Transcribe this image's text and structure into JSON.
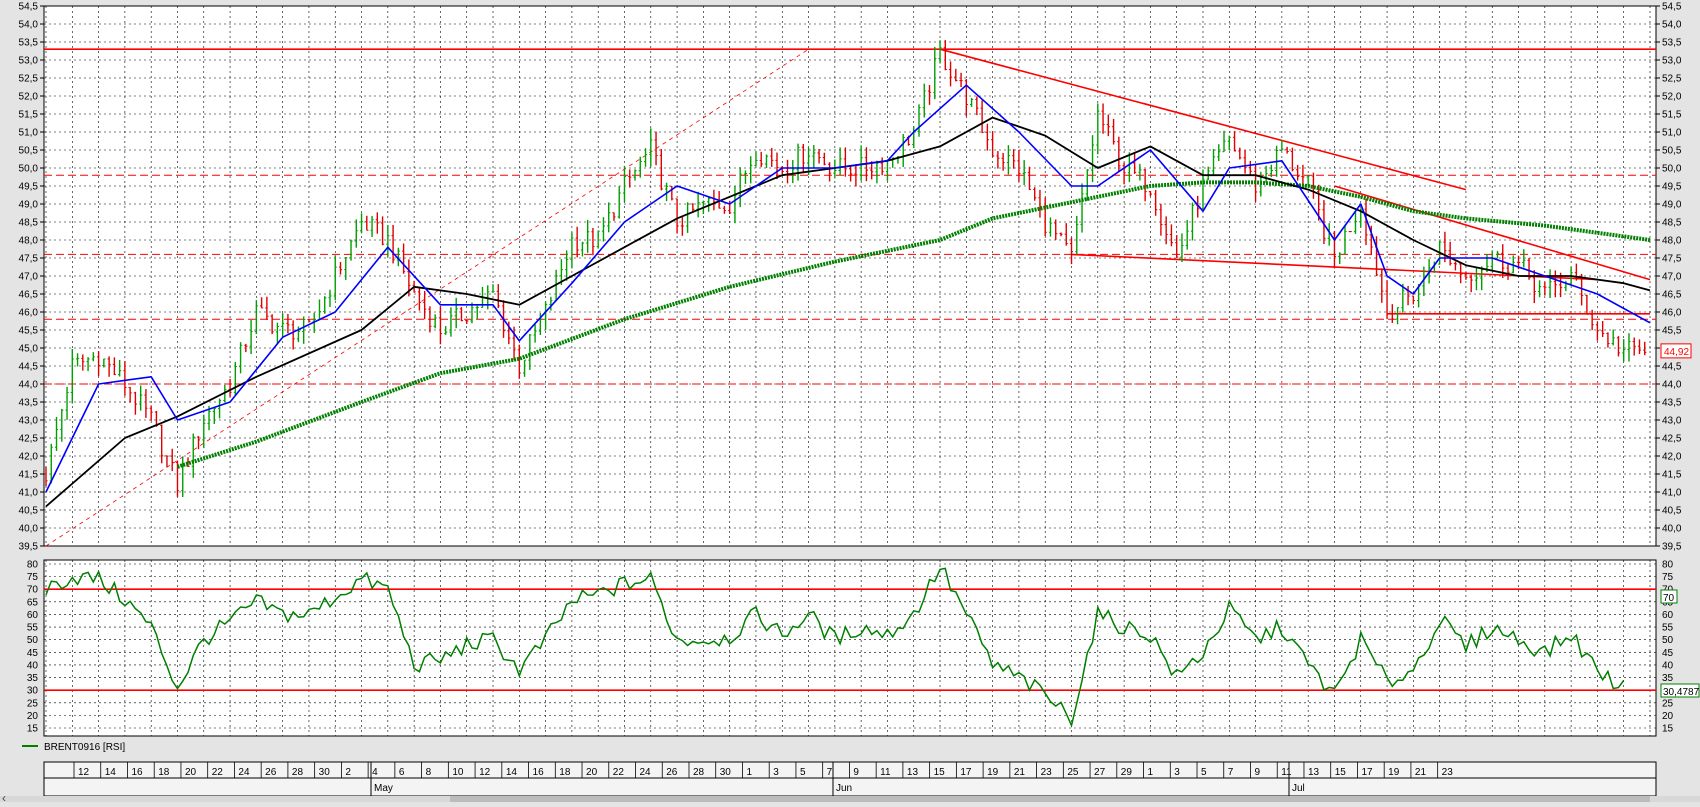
{
  "price_panel": {
    "ylim": [
      39.5,
      54.5
    ],
    "grid": true,
    "right_tick_labels": [
      "54,5",
      "54,0",
      "53,5",
      "53,0",
      "52,5",
      "52,0",
      "51,5",
      "51,0",
      "50,5",
      "50,0",
      "49,5",
      "49,0",
      "48,5",
      "48,0",
      "47,5",
      "47,0",
      "46,5",
      "46,0",
      "45,5",
      "45,0",
      "44,5",
      "44,0",
      "43,5",
      "43,0",
      "42,5",
      "42,0",
      "41,5",
      "41,0",
      "40,5",
      "40,0",
      "39,5"
    ],
    "left_tick_labels": [
      "54,5",
      "54,0",
      "53,5",
      "53,0",
      "52,5",
      "52,0",
      "51,5",
      "51,0",
      "50,5",
      "50,0",
      "49,5",
      "49,0",
      "48,5",
      "48,0",
      "47,5",
      "47,0",
      "46,5",
      "46,0",
      "45,5",
      "45,0",
      "44,5",
      "44,0",
      "43,5",
      "43,0",
      "42,5",
      "42,0",
      "41,5",
      "41,0",
      "40,5",
      "40,0",
      "39,5"
    ],
    "last_price_label": "44,92",
    "last_price": 44.92,
    "colors": {
      "up": "#00a000",
      "down": "#e00000",
      "ma_fast": "#0000ff",
      "ma_mid": "#000000",
      "ma_slow": "#008000",
      "levels": "#ff0000"
    }
  },
  "rsi_panel": {
    "ylim": [
      15,
      80
    ],
    "tick_labels": [
      "80",
      "75",
      "70",
      "65",
      "60",
      "55",
      "50",
      "45",
      "40",
      "35",
      "30",
      "25",
      "20",
      "15"
    ],
    "upper_label": "70",
    "last_value_label": "30,4787",
    "legend": "BRENT0916 [RSI]",
    "line_color": "#008000"
  },
  "date_axis": {
    "day_labels": [
      "12",
      "14",
      "16",
      "18",
      "20",
      "22",
      "24",
      "26",
      "28",
      "30",
      "2",
      "4",
      "6",
      "8",
      "10",
      "12",
      "14",
      "16",
      "18",
      "20",
      "22",
      "24",
      "26",
      "28",
      "30",
      "1",
      "3",
      "5",
      "7",
      "9",
      "11",
      "13",
      "15",
      "17",
      "19",
      "21",
      "23",
      "25",
      "27",
      "29",
      "1",
      "3",
      "5",
      "7",
      "9",
      "11",
      "13",
      "15",
      "17",
      "19",
      "21",
      "23"
    ],
    "month_labels": [
      "May",
      "Jun",
      "Jul"
    ]
  },
  "chart_data": {
    "type": "line",
    "instrument": "BRENT0916",
    "x_labels": [
      "12",
      "14",
      "16",
      "18",
      "20",
      "22",
      "24",
      "26",
      "28",
      "30",
      "2",
      "4",
      "6",
      "8",
      "10",
      "12",
      "14",
      "16",
      "18",
      "20",
      "22",
      "24",
      "26",
      "28",
      "30",
      "1",
      "3",
      "5",
      "7",
      "9",
      "11",
      "13",
      "15",
      "17",
      "19",
      "21",
      "23",
      "25",
      "27",
      "29",
      "1",
      "3",
      "5",
      "7",
      "9",
      "11",
      "13",
      "15",
      "17",
      "19",
      "21",
      "23"
    ],
    "price_key_points": [
      [
        0,
        41.5
      ],
      [
        1,
        44.5
      ],
      [
        2,
        44.8
      ],
      [
        3,
        44.0
      ],
      [
        4,
        43.0
      ],
      [
        5,
        41.2
      ],
      [
        6,
        43.0
      ],
      [
        7,
        44.0
      ],
      [
        8,
        46.0
      ],
      [
        9,
        45.5
      ],
      [
        10,
        45.5
      ],
      [
        11,
        47.0
      ],
      [
        12,
        48.5
      ],
      [
        13,
        48.0
      ],
      [
        14,
        46.5
      ],
      [
        15,
        45.5
      ],
      [
        16,
        46.0
      ],
      [
        17,
        46.5
      ],
      [
        18,
        44.5
      ],
      [
        19,
        46.0
      ],
      [
        20,
        48.0
      ],
      [
        21,
        48.0
      ],
      [
        22,
        49.5
      ],
      [
        23,
        50.5
      ],
      [
        24,
        48.5
      ],
      [
        25,
        49.0
      ],
      [
        26,
        49.0
      ],
      [
        27,
        50.5
      ],
      [
        28,
        50.0
      ],
      [
        29,
        50.5
      ],
      [
        30,
        50.0
      ],
      [
        31,
        50.0
      ],
      [
        32,
        50.2
      ],
      [
        33,
        51.0
      ],
      [
        34,
        53.2
      ],
      [
        35,
        52.0
      ],
      [
        36,
        50.5
      ],
      [
        37,
        50.0
      ],
      [
        38,
        48.5
      ],
      [
        39,
        47.5
      ],
      [
        40,
        51.5
      ],
      [
        41,
        50.0
      ],
      [
        42,
        49.5
      ],
      [
        43,
        47.5
      ],
      [
        44,
        49.5
      ],
      [
        45,
        50.8
      ],
      [
        46,
        49.5
      ],
      [
        47,
        50.5
      ],
      [
        48,
        49.5
      ],
      [
        49,
        47.5
      ],
      [
        50,
        49.0
      ],
      [
        51,
        46.0
      ],
      [
        52,
        46.5
      ],
      [
        53,
        47.8
      ],
      [
        54,
        47.0
      ],
      [
        55,
        47.5
      ],
      [
        56,
        47.3
      ],
      [
        57,
        46.5
      ],
      [
        58,
        47.0
      ],
      [
        59,
        45.5
      ],
      [
        60,
        44.92
      ]
    ],
    "ma_fast_key_points": [
      [
        0,
        41.0
      ],
      [
        2,
        44.0
      ],
      [
        4,
        44.2
      ],
      [
        5,
        43.0
      ],
      [
        7,
        43.5
      ],
      [
        9,
        45.3
      ],
      [
        11,
        46.0
      ],
      [
        13,
        47.8
      ],
      [
        15,
        46.2
      ],
      [
        17,
        46.2
      ],
      [
        18,
        45.2
      ],
      [
        20,
        46.8
      ],
      [
        22,
        48.5
      ],
      [
        24,
        49.5
      ],
      [
        26,
        49.0
      ],
      [
        28,
        50.0
      ],
      [
        30,
        50.0
      ],
      [
        32,
        50.2
      ],
      [
        33,
        51.0
      ],
      [
        35,
        52.3
      ],
      [
        37,
        51.0
      ],
      [
        39,
        49.5
      ],
      [
        40,
        49.5
      ],
      [
        42,
        50.5
      ],
      [
        44,
        48.8
      ],
      [
        45,
        50.0
      ],
      [
        47,
        50.2
      ],
      [
        49,
        48.0
      ],
      [
        50,
        49.0
      ],
      [
        51,
        47.0
      ],
      [
        52,
        46.5
      ],
      [
        53,
        47.5
      ],
      [
        55,
        47.5
      ],
      [
        57,
        47.0
      ],
      [
        59,
        46.5
      ],
      [
        61,
        45.7
      ]
    ],
    "ma_mid_key_points": [
      [
        0,
        40.6
      ],
      [
        3,
        42.5
      ],
      [
        5,
        43.1
      ],
      [
        8,
        44.2
      ],
      [
        12,
        45.5
      ],
      [
        14,
        46.7
      ],
      [
        16,
        46.5
      ],
      [
        18,
        46.2
      ],
      [
        20,
        47.0
      ],
      [
        22,
        47.8
      ],
      [
        24,
        48.6
      ],
      [
        26,
        49.2
      ],
      [
        28,
        49.8
      ],
      [
        30,
        50.0
      ],
      [
        32,
        50.2
      ],
      [
        34,
        50.6
      ],
      [
        36,
        51.4
      ],
      [
        38,
        50.9
      ],
      [
        40,
        50.0
      ],
      [
        42,
        50.6
      ],
      [
        44,
        49.8
      ],
      [
        46,
        49.8
      ],
      [
        48,
        49.4
      ],
      [
        50,
        48.8
      ],
      [
        52,
        48.0
      ],
      [
        54,
        47.3
      ],
      [
        56,
        47.0
      ],
      [
        58,
        47.0
      ],
      [
        60,
        46.8
      ],
      [
        61,
        46.6
      ]
    ],
    "ma_slow_key_points": [
      [
        5,
        41.7
      ],
      [
        8,
        42.4
      ],
      [
        12,
        43.5
      ],
      [
        15,
        44.3
      ],
      [
        18,
        44.7
      ],
      [
        22,
        45.8
      ],
      [
        26,
        46.7
      ],
      [
        30,
        47.4
      ],
      [
        34,
        48.0
      ],
      [
        36,
        48.6
      ],
      [
        38,
        48.9
      ],
      [
        40,
        49.2
      ],
      [
        42,
        49.5
      ],
      [
        44,
        49.6
      ],
      [
        46,
        49.6
      ],
      [
        48,
        49.5
      ],
      [
        50,
        49.2
      ],
      [
        52,
        48.8
      ],
      [
        54,
        48.6
      ],
      [
        57,
        48.4
      ],
      [
        59,
        48.2
      ],
      [
        61,
        48.0
      ]
    ],
    "horizontal_levels": [
      {
        "value": 53.3,
        "style": "solid"
      },
      {
        "value": 49.8,
        "style": "dashed"
      },
      {
        "value": 47.6,
        "style": "dashed"
      },
      {
        "value": 45.8,
        "style": "dashed"
      },
      {
        "value": 44.0,
        "style": "dashed"
      }
    ],
    "trendlines": [
      {
        "from": [
          0,
          39.5
        ],
        "to": [
          29,
          53.3
        ],
        "style": "dashed"
      },
      {
        "from": [
          34,
          53.3
        ],
        "to": [
          54,
          49.4
        ],
        "style": "solid"
      },
      {
        "from": [
          39,
          47.6
        ],
        "to": [
          59,
          46.9
        ],
        "style": "solid"
      },
      {
        "from": [
          49,
          49.5
        ],
        "to": [
          61,
          46.9
        ],
        "style": "solid"
      },
      {
        "from": [
          51,
          45.95
        ],
        "to": [
          61,
          45.95
        ],
        "style": "solid"
      }
    ],
    "rsi_key_points": [
      [
        0,
        70
      ],
      [
        1,
        75
      ],
      [
        2,
        74
      ],
      [
        3,
        66
      ],
      [
        4,
        55
      ],
      [
        5,
        31
      ],
      [
        6,
        50
      ],
      [
        7,
        57
      ],
      [
        8,
        65
      ],
      [
        9,
        60
      ],
      [
        10,
        60
      ],
      [
        11,
        67
      ],
      [
        12,
        74
      ],
      [
        13,
        70
      ],
      [
        14,
        40
      ],
      [
        15,
        42
      ],
      [
        16,
        48
      ],
      [
        17,
        50
      ],
      [
        18,
        38
      ],
      [
        19,
        50
      ],
      [
        20,
        65
      ],
      [
        21,
        68
      ],
      [
        22,
        72
      ],
      [
        23,
        74
      ],
      [
        24,
        50
      ],
      [
        25,
        50
      ],
      [
        26,
        51
      ],
      [
        27,
        60
      ],
      [
        28,
        52
      ],
      [
        29,
        60
      ],
      [
        30,
        50
      ],
      [
        31,
        55
      ],
      [
        32,
        52
      ],
      [
        33,
        60
      ],
      [
        34,
        79
      ],
      [
        35,
        60
      ],
      [
        36,
        40
      ],
      [
        37,
        35
      ],
      [
        38,
        28
      ],
      [
        39,
        19
      ],
      [
        40,
        60
      ],
      [
        41,
        55
      ],
      [
        42,
        52
      ],
      [
        43,
        35
      ],
      [
        44,
        45
      ],
      [
        45,
        62
      ],
      [
        46,
        50
      ],
      [
        47,
        55
      ],
      [
        48,
        40
      ],
      [
        49,
        28
      ],
      [
        50,
        50
      ],
      [
        51,
        33
      ],
      [
        52,
        38
      ],
      [
        53,
        58
      ],
      [
        54,
        47
      ],
      [
        55,
        55
      ],
      [
        56,
        50
      ],
      [
        57,
        45
      ],
      [
        58,
        52
      ],
      [
        59,
        38
      ],
      [
        60,
        30.48
      ]
    ],
    "rsi_levels": [
      70,
      30
    ]
  }
}
